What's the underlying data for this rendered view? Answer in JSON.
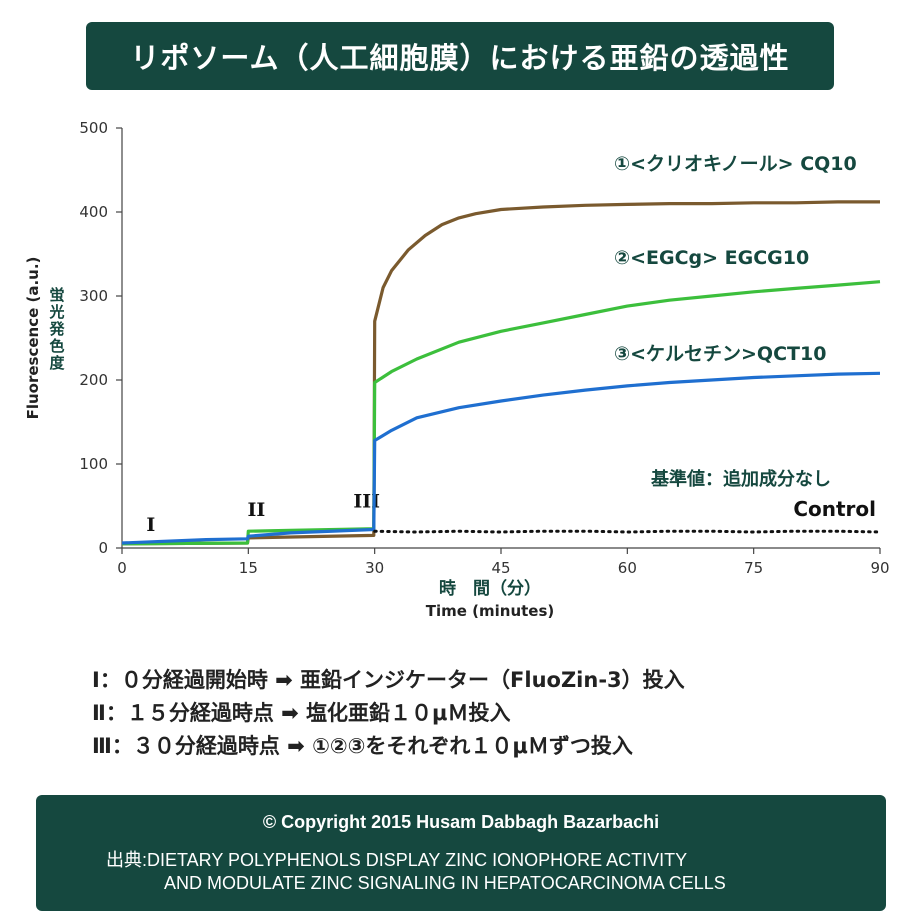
{
  "header": {
    "title": "リポソーム（人工細胞膜）における亜鉛の透過性"
  },
  "chart_data": {
    "type": "line",
    "title": "",
    "xlabel_jp": "時　間（分）",
    "xlabel": "Time (minutes)",
    "ylabel": "Fluorescence (a.u.)",
    "ylabel_jp": "蛍光発色度",
    "xlim": [
      0,
      90
    ],
    "ylim": [
      0,
      500
    ],
    "xticks": [
      0,
      15,
      30,
      45,
      60,
      75,
      90
    ],
    "yticks": [
      0,
      100,
      200,
      300,
      400,
      500
    ],
    "grid": false,
    "phase_markers": [
      {
        "label": "I",
        "x": 2
      },
      {
        "label": "II",
        "x": 15
      },
      {
        "label": "III",
        "x": 30
      }
    ],
    "series": [
      {
        "name": "CQ10",
        "legend": "①<クリオキノール> CQ10",
        "color": "#7a5a2e",
        "style": "solid",
        "x": [
          0,
          14.9,
          15,
          29.9,
          30,
          31,
          32,
          34,
          36,
          38,
          40,
          42,
          45,
          50,
          55,
          60,
          65,
          70,
          75,
          80,
          85,
          90
        ],
        "y": [
          5,
          6,
          12,
          15,
          270,
          310,
          330,
          355,
          372,
          385,
          393,
          398,
          403,
          406,
          408,
          409,
          410,
          410,
          411,
          411,
          412,
          412
        ]
      },
      {
        "name": "EGCG10",
        "legend": "②<EGCg>  EGCG10",
        "color": "#3cbf3c",
        "style": "solid",
        "x": [
          0,
          14.9,
          15,
          20,
          29.9,
          30,
          32,
          35,
          40,
          45,
          50,
          55,
          60,
          65,
          70,
          75,
          80,
          85,
          90
        ],
        "y": [
          5,
          6,
          20,
          21,
          23,
          197,
          210,
          225,
          245,
          258,
          268,
          278,
          288,
          295,
          300,
          305,
          309,
          313,
          317
        ]
      },
      {
        "name": "QCT10",
        "legend": "③<ケルセチン>QCT10",
        "color": "#1f6fd0",
        "style": "solid",
        "x": [
          0,
          10,
          14.9,
          15,
          20,
          29.9,
          30,
          32,
          35,
          40,
          45,
          50,
          55,
          60,
          65,
          70,
          75,
          80,
          85,
          90
        ],
        "y": [
          6,
          10,
          11,
          14,
          18,
          22,
          128,
          140,
          155,
          167,
          175,
          182,
          188,
          193,
          197,
          200,
          203,
          205,
          207,
          208
        ]
      },
      {
        "name": "Control",
        "legend": "基準値：追加成分なし",
        "legend2": "Control",
        "color": "#111111",
        "style": "dotted",
        "x": [
          30,
          35,
          40,
          45,
          50,
          55,
          60,
          65,
          70,
          75,
          80,
          85,
          90
        ],
        "y": [
          20,
          19,
          20,
          19,
          20,
          20,
          19,
          20,
          20,
          19,
          20,
          20,
          19
        ]
      }
    ]
  },
  "notes": [
    "Ⅰ：０分経過開始時 ➡ 亜鉛インジケーター（FluoZin-3）投入",
    "Ⅱ：１５分経過時点 ➡ 塩化亜鉛１０μＭ投入",
    "Ⅲ：３０分経過時点 ➡ ①②③をそれぞれ１０μＭずつ投入"
  ],
  "footer": {
    "copyright": "© Copyright 2015  Husam Dabbagh Bazarbachi",
    "source_line1": "出典:DIETARY POLYPHENOLS DISPLAY ZINC IONOPHORE ACTIVITY",
    "source_line2": "AND MODULATE ZINC SIGNALING IN HEPATOCARCINOMA CELLS"
  }
}
